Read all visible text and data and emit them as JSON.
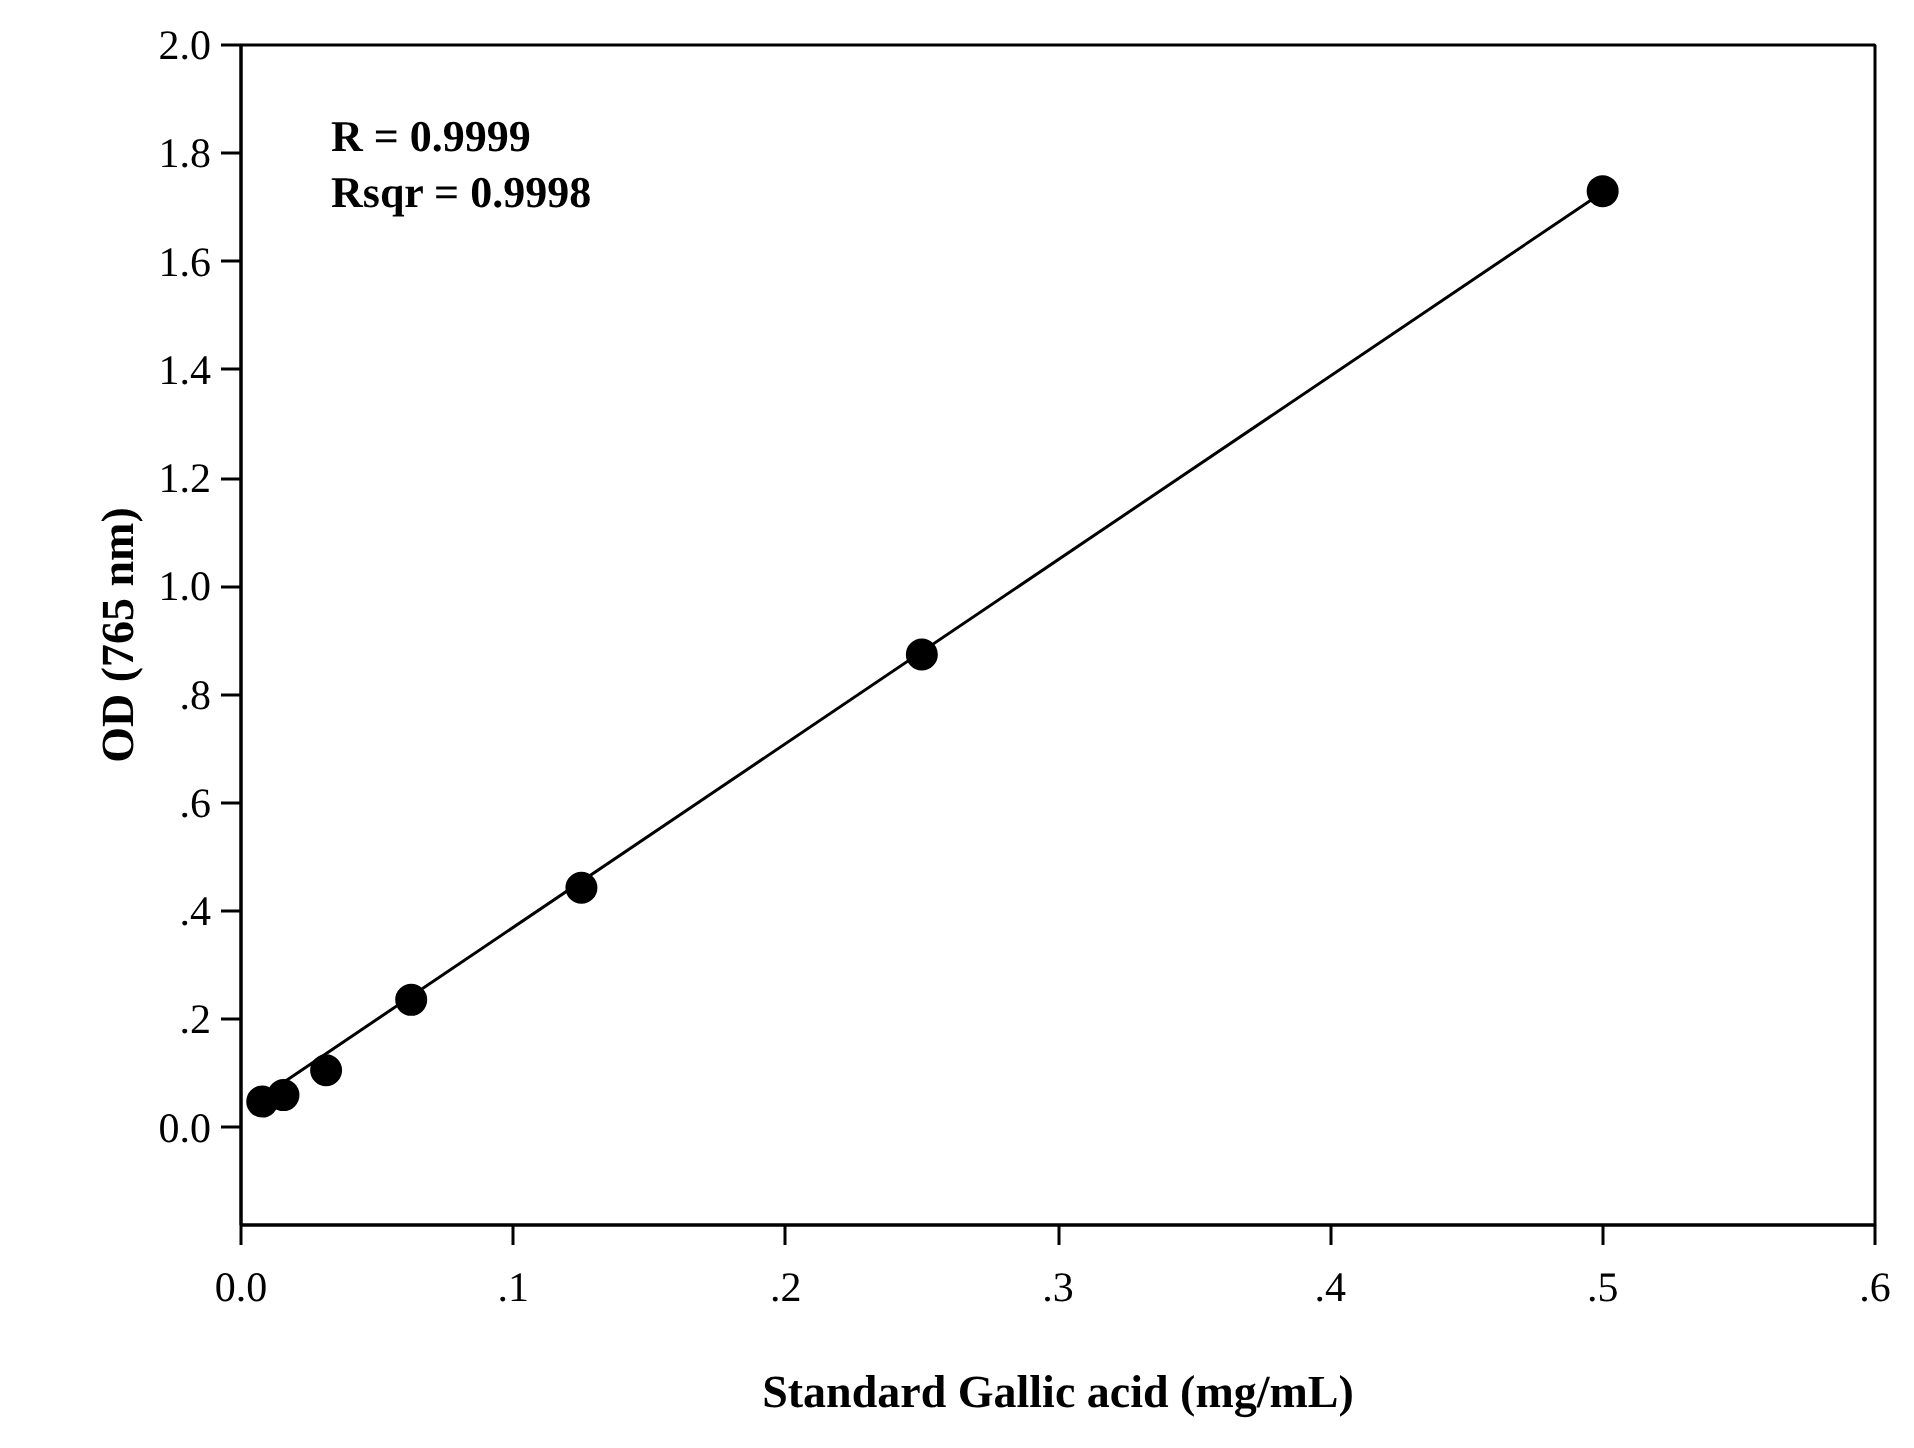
{
  "chart_data": {
    "type": "scatter",
    "xlabel": "Standard Gallic acid (mg/mL)",
    "ylabel": "OD (765 nm)",
    "annotations": [
      "R = 0.9999",
      "Rsqr = 0.9998"
    ],
    "series": [
      {
        "color": "#000000",
        "marker": "circle",
        "x": [
          0.0078,
          0.0156,
          0.03125,
          0.0625,
          0.125,
          0.25,
          0.5
        ],
        "values": [
          0.048,
          0.06,
          0.106,
          0.236,
          0.443,
          0.874,
          1.73
        ]
      },
      {
        "type": "line",
        "color": "#000000",
        "line_style": "solid",
        "x": [
          0.0078,
          0.5
        ],
        "values": [
          0.057,
          1.728
        ]
      }
    ],
    "xlim": [
      0,
      0.6
    ],
    "ylim": [
      -0.18,
      2.0
    ],
    "xticks": [
      {
        "value": 0,
        "label": "0.0"
      },
      {
        "value": 0.1,
        "label": ".1"
      },
      {
        "value": 0.2,
        "label": ".2"
      },
      {
        "value": 0.3,
        "label": ".3"
      },
      {
        "value": 0.4,
        "label": ".4"
      },
      {
        "value": 0.5,
        "label": ".5"
      },
      {
        "value": 0.6,
        "label": ".6"
      }
    ],
    "yticks": [
      {
        "value": 0,
        "label": "0.0"
      },
      {
        "value": 0.2,
        "label": ".2"
      },
      {
        "value": 0.4,
        "label": ".4"
      },
      {
        "value": 0.6,
        "label": ".6"
      },
      {
        "value": 0.8,
        "label": ".8"
      },
      {
        "value": 1.0,
        "label": "1.0"
      },
      {
        "value": 1.2,
        "label": "1.2"
      },
      {
        "value": 1.4,
        "label": "1.4"
      },
      {
        "value": 1.6,
        "label": "1.6"
      },
      {
        "value": 1.8,
        "label": "1.8"
      },
      {
        "value": 2.0,
        "label": "2.0"
      }
    ],
    "grid": false
  }
}
